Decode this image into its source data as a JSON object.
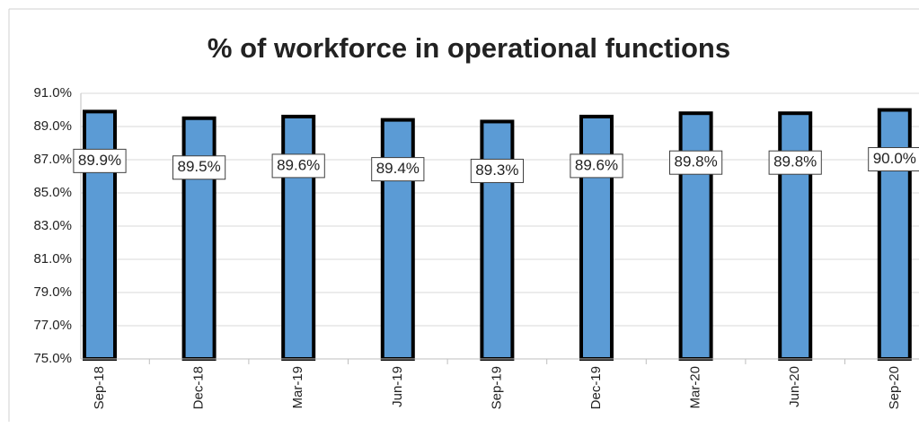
{
  "chart_data": {
    "type": "bar",
    "title": "% of workforce in operational functions",
    "categories": [
      "Sep-18",
      "Dec-18",
      "Mar-19",
      "Jun-19",
      "Sep-19",
      "Dec-19",
      "Mar-20",
      "Jun-20",
      "Sep-20"
    ],
    "values": [
      89.9,
      89.5,
      89.6,
      89.4,
      89.3,
      89.6,
      89.8,
      89.8,
      90.0
    ],
    "value_labels": [
      "89.9%",
      "89.5%",
      "89.6%",
      "89.4%",
      "89.3%",
      "89.6%",
      "89.8%",
      "89.8%",
      "90.0%"
    ],
    "color": "#5b9bd5",
    "ylim": [
      75,
      91
    ],
    "yticks": [
      {
        "value": 75,
        "label": "75.0%"
      },
      {
        "value": 77,
        "label": "77.0%"
      },
      {
        "value": 79,
        "label": "79.0%"
      },
      {
        "value": 81,
        "label": "81.0%"
      },
      {
        "value": 83,
        "label": "83.0%"
      },
      {
        "value": 85,
        "label": "85.0%"
      },
      {
        "value": 87,
        "label": "87.0%"
      },
      {
        "value": 89,
        "label": "89.0%"
      },
      {
        "value": 91,
        "label": "91.0%"
      }
    ],
    "grid": true
  }
}
